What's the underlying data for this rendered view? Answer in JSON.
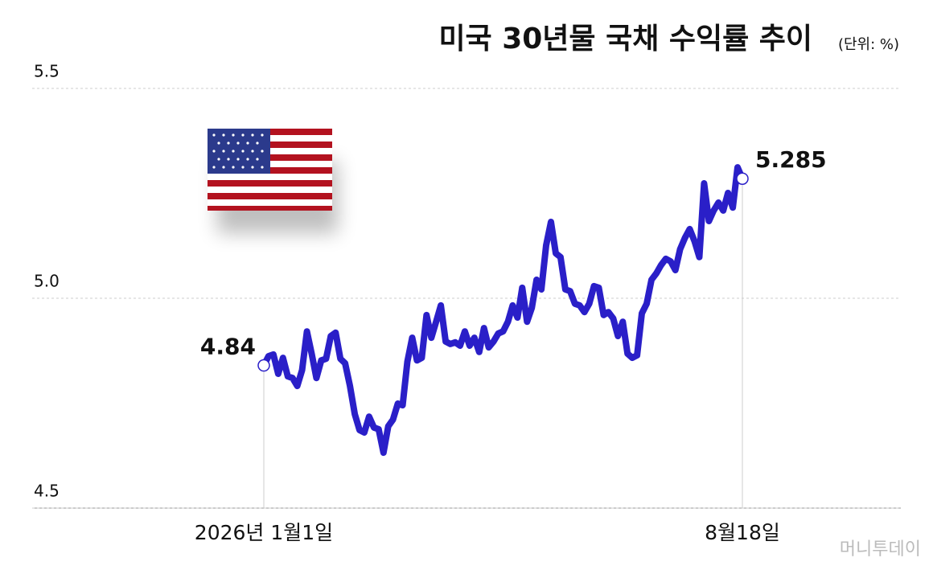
{
  "chart_data": {
    "type": "line",
    "title": "미국 30년물 국채 수익률 추이",
    "subtitle": "(단위: %)",
    "source": "머니투데이",
    "categories": [
      "2026년 1월1일",
      null,
      null,
      null,
      null,
      null,
      null,
      null,
      null,
      null,
      null,
      null,
      null,
      null,
      null,
      null,
      null,
      null,
      null,
      null,
      null,
      null,
      null,
      null,
      null,
      null,
      null,
      null,
      null,
      null,
      null,
      null,
      null,
      null,
      null,
      null,
      null,
      null,
      null,
      null,
      null,
      null,
      null,
      null,
      null,
      null,
      null,
      null,
      null,
      null,
      null,
      null,
      null,
      null,
      null,
      null,
      null,
      null,
      null,
      null,
      null,
      null,
      null,
      null,
      null,
      null,
      null,
      null,
      null,
      null,
      null,
      null,
      null,
      null,
      null,
      null,
      null,
      null,
      null,
      null,
      null,
      null,
      null,
      null,
      null,
      null,
      null,
      null,
      null,
      null,
      null,
      null,
      null,
      null,
      null,
      null,
      null,
      null,
      null,
      null,
      "8월18일"
    ],
    "values": [
      4.84,
      4.862,
      4.866,
      4.82,
      4.858,
      4.814,
      4.81,
      4.791,
      4.829,
      4.921,
      4.868,
      4.81,
      4.852,
      4.856,
      4.91,
      4.918,
      4.856,
      4.845,
      4.791,
      4.724,
      4.686,
      4.68,
      4.718,
      4.692,
      4.688,
      4.632,
      4.695,
      4.711,
      4.749,
      4.745,
      4.849,
      4.906,
      4.852,
      4.858,
      4.96,
      4.906,
      4.944,
      4.983,
      4.897,
      4.891,
      4.895,
      4.887,
      4.921,
      4.887,
      4.906,
      4.872,
      4.929,
      4.883,
      4.897,
      4.916,
      4.921,
      4.944,
      4.983,
      4.954,
      5.025,
      4.944,
      4.977,
      5.044,
      5.021,
      5.126,
      5.182,
      5.107,
      5.098,
      5.021,
      5.017,
      4.987,
      4.983,
      4.967,
      4.987,
      5.029,
      5.025,
      4.96,
      4.967,
      4.952,
      4.91,
      4.944,
      4.868,
      4.858,
      4.864,
      4.964,
      4.987,
      5.044,
      5.059,
      5.079,
      5.094,
      5.088,
      5.067,
      5.117,
      5.144,
      5.165,
      5.136,
      5.098,
      5.274,
      5.184,
      5.209,
      5.228,
      5.209,
      5.251,
      5.216,
      5.312,
      5.285
    ],
    "color": "#2a1fc8",
    "ylim": [
      4.5,
      5.5
    ],
    "yticks": [
      4.5,
      {
        "value": 5,
        "label": "5.0"
      },
      5.5
    ],
    "grid": true
  }
}
